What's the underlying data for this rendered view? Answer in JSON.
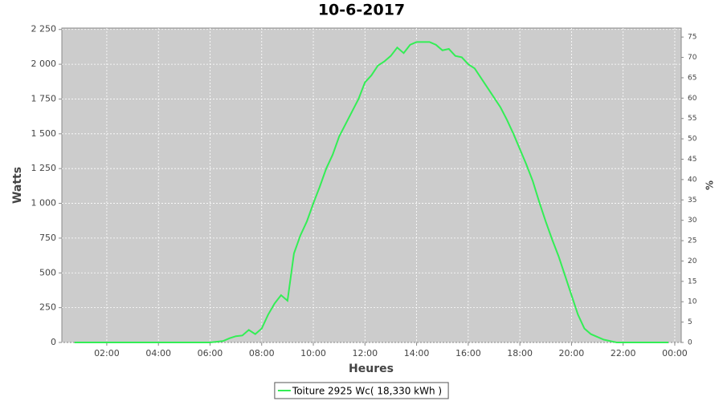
{
  "chart_data": {
    "type": "line",
    "title": "10-6-2017",
    "x_label": "Heures",
    "y_label": "Watts",
    "y2_label": "%",
    "grid": true,
    "legend": "bottom",
    "xlim": [
      0.26,
      24.25
    ],
    "xticks": [
      {
        "value": 2,
        "label": "02:00"
      },
      {
        "value": 4,
        "label": "04:00"
      },
      {
        "value": 6,
        "label": "06:00"
      },
      {
        "value": 8,
        "label": "08:00"
      },
      {
        "value": 10,
        "label": "10:00"
      },
      {
        "value": 12,
        "label": "12:00"
      },
      {
        "value": 14,
        "label": "14:00"
      },
      {
        "value": 16,
        "label": "16:00"
      },
      {
        "value": 18,
        "label": "18:00"
      },
      {
        "value": 20,
        "label": "20:00"
      },
      {
        "value": 22,
        "label": "22:00"
      },
      {
        "value": 24,
        "label": "00:00"
      }
    ],
    "ylim": [
      0,
      2260
    ],
    "yticks": [
      0,
      250,
      500,
      750,
      {
        "value": 1000,
        "label": "1 000"
      },
      {
        "value": 1250,
        "label": "1 250"
      },
      {
        "value": 1500,
        "label": "1 500"
      },
      {
        "value": 1750,
        "label": "1 750"
      },
      {
        "value": 2000,
        "label": "2 000"
      },
      {
        "value": 2250,
        "label": "2 250"
      }
    ],
    "y2lim": [
      0,
      77.2
    ],
    "y2ticks": [
      0,
      5,
      10,
      15,
      20,
      25,
      30,
      35,
      40,
      45,
      50,
      55,
      60,
      65,
      70,
      75
    ],
    "x": [
      0.75,
      1,
      1.25,
      1.5,
      1.75,
      2,
      2.25,
      2.5,
      2.75,
      3,
      3.25,
      3.5,
      3.75,
      4,
      4.25,
      4.5,
      4.75,
      5,
      5.25,
      5.5,
      5.75,
      6,
      6.25,
      6.5,
      6.75,
      7,
      7.25,
      7.5,
      7.75,
      8,
      8.25,
      8.5,
      8.75,
      9,
      9.25,
      9.5,
      9.75,
      10,
      10.25,
      10.5,
      10.75,
      11,
      11.25,
      11.5,
      11.75,
      12,
      12.25,
      12.5,
      12.75,
      13,
      13.25,
      13.5,
      13.75,
      14,
      14.25,
      14.5,
      14.75,
      15,
      15.25,
      15.5,
      15.75,
      16,
      16.25,
      16.5,
      16.75,
      17,
      17.25,
      17.5,
      17.75,
      18,
      18.25,
      18.5,
      18.75,
      19,
      19.25,
      19.5,
      19.75,
      20,
      20.25,
      20.5,
      20.75,
      21,
      21.25,
      21.5,
      21.75,
      22,
      22.25,
      22.5,
      22.75,
      23,
      23.25,
      23.5,
      23.75
    ],
    "series": [
      {
        "name": "Toiture 2925 Wc( 18,330 kWh )",
        "color": "#33ee55",
        "values": [
          0,
          0,
          0,
          0,
          0,
          0,
          0,
          0,
          0,
          0,
          0,
          0,
          0,
          0,
          0,
          0,
          0,
          0,
          0,
          0,
          0,
          0,
          5,
          10,
          30,
          45,
          50,
          90,
          60,
          100,
          200,
          280,
          340,
          300,
          640,
          770,
          870,
          1000,
          1120,
          1250,
          1350,
          1480,
          1570,
          1660,
          1750,
          1870,
          1920,
          1990,
          2020,
          2060,
          2120,
          2080,
          2140,
          2160,
          2160,
          2160,
          2140,
          2100,
          2110,
          2060,
          2050,
          2000,
          1970,
          1900,
          1830,
          1760,
          1690,
          1600,
          1500,
          1390,
          1280,
          1160,
          1010,
          870,
          740,
          620,
          480,
          340,
          200,
          100,
          60,
          40,
          20,
          10,
          0,
          0,
          0,
          0,
          0,
          0,
          0,
          0,
          0
        ]
      }
    ]
  }
}
